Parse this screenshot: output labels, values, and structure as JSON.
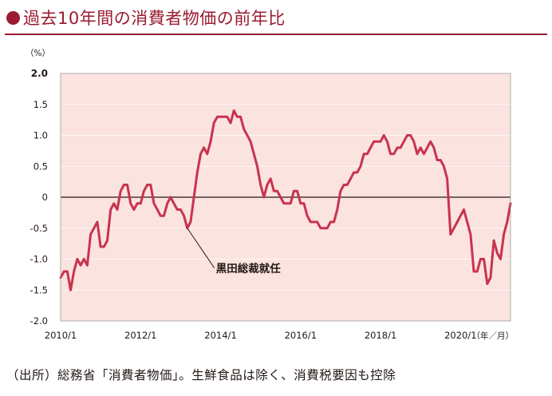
{
  "title": "過去10年間の消費者物価の前年比",
  "source": "（出所）総務省「消費者物価」。生鮮食品は除く、消費税要因も控除",
  "colors": {
    "accent": "#9b1c31",
    "plot_bg": "#fbe3e0",
    "line": "#c8334e"
  },
  "chart_data": {
    "type": "line",
    "ylabel": "（%）",
    "xlabel": "（年／月）",
    "ylim": [
      -2.0,
      2.0
    ],
    "yticks": [
      -2.0,
      -1.5,
      -1.0,
      -0.5,
      0,
      0.5,
      1.0,
      1.5,
      2.0
    ],
    "ytick_labels": [
      "-2.0",
      "-1.5",
      "-1.0",
      "-0.5",
      "0",
      "0.5",
      "1.0",
      "1.5",
      "2.0"
    ],
    "x_start": "2010/1",
    "xtick_labels": [
      "2010/1",
      "2012/1",
      "2014/1",
      "2016/1",
      "2018/1",
      "2020/1"
    ],
    "annotation": {
      "text": "黒田総裁就任",
      "date": "2013/3"
    },
    "series": [
      {
        "values": [
          -1.3,
          -1.2,
          -1.2,
          -1.5,
          -1.2,
          -1.0,
          -1.1,
          -1.0,
          -1.1,
          -0.6,
          -0.5,
          -0.4,
          -0.8,
          -0.8,
          -0.7,
          -0.2,
          -0.1,
          -0.2,
          0.1,
          0.2,
          0.2,
          -0.1,
          -0.2,
          -0.1,
          -0.1,
          0.1,
          0.2,
          0.2,
          -0.1,
          -0.2,
          -0.3,
          -0.3,
          -0.1,
          0.0,
          -0.1,
          -0.2,
          -0.2,
          -0.3,
          -0.5,
          -0.4,
          0.0,
          0.4,
          0.7,
          0.8,
          0.7,
          0.9,
          1.2,
          1.3,
          1.3,
          1.3,
          1.3,
          1.2,
          1.4,
          1.3,
          1.3,
          1.1,
          1.0,
          0.9,
          0.7,
          0.5,
          0.2,
          0.0,
          0.2,
          0.3,
          0.1,
          0.1,
          0.0,
          -0.1,
          -0.1,
          -0.1,
          0.1,
          0.1,
          -0.1,
          -0.1,
          -0.3,
          -0.4,
          -0.4,
          -0.4,
          -0.5,
          -0.5,
          -0.5,
          -0.4,
          -0.4,
          -0.2,
          0.1,
          0.2,
          0.2,
          0.3,
          0.4,
          0.4,
          0.5,
          0.7,
          0.7,
          0.8,
          0.9,
          0.9,
          0.9,
          1.0,
          0.9,
          0.7,
          0.7,
          0.8,
          0.8,
          0.9,
          1.0,
          1.0,
          0.9,
          0.7,
          0.8,
          0.7,
          0.8,
          0.9,
          0.8,
          0.6,
          0.6,
          0.5,
          0.3,
          -0.6,
          -0.5,
          -0.4,
          -0.3,
          -0.2,
          -0.4,
          -0.6,
          -1.2,
          -1.2,
          -1.0,
          -1.0,
          -1.4,
          -1.3,
          -0.7,
          -0.9,
          -1.0,
          -0.6,
          -0.4,
          -0.1
        ]
      }
    ]
  }
}
